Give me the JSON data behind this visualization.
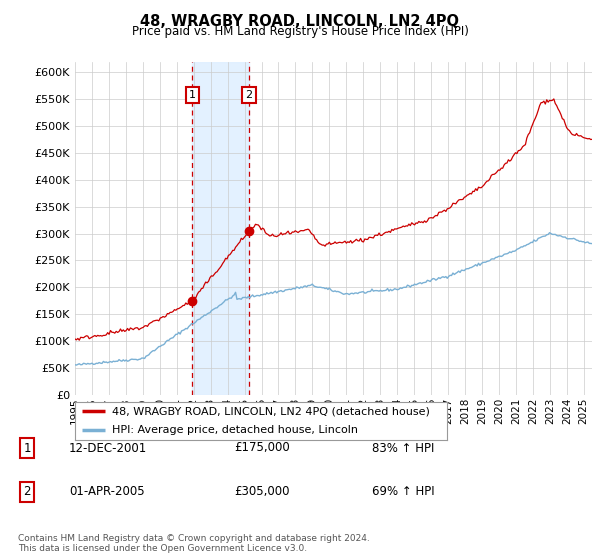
{
  "title": "48, WRAGBY ROAD, LINCOLN, LN2 4PQ",
  "subtitle": "Price paid vs. HM Land Registry's House Price Index (HPI)",
  "ylim": [
    0,
    620000
  ],
  "yticks": [
    0,
    50000,
    100000,
    150000,
    200000,
    250000,
    300000,
    350000,
    400000,
    450000,
    500000,
    550000,
    600000
  ],
  "sale1_date": 2001.92,
  "sale1_price": 175000,
  "sale1_label": "1",
  "sale2_date": 2005.25,
  "sale2_price": 305000,
  "sale2_label": "2",
  "hpi_line_color": "#7ab0d4",
  "price_line_color": "#cc0000",
  "shading_color": "#ddeeff",
  "grid_color": "#cccccc",
  "background_color": "#ffffff",
  "legend_entries": [
    {
      "label": "48, WRAGBY ROAD, LINCOLN, LN2 4PQ (detached house)",
      "color": "#cc0000"
    },
    {
      "label": "HPI: Average price, detached house, Lincoln",
      "color": "#7ab0d4"
    }
  ],
  "table_rows": [
    {
      "num": "1",
      "date": "12-DEC-2001",
      "price": "£175,000",
      "pct": "83% ↑ HPI"
    },
    {
      "num": "2",
      "date": "01-APR-2005",
      "price": "£305,000",
      "pct": "69% ↑ HPI"
    }
  ],
  "footnote": "Contains HM Land Registry data © Crown copyright and database right 2024.\nThis data is licensed under the Open Government Licence v3.0.",
  "xstart": 1995.0,
  "xend": 2025.5
}
